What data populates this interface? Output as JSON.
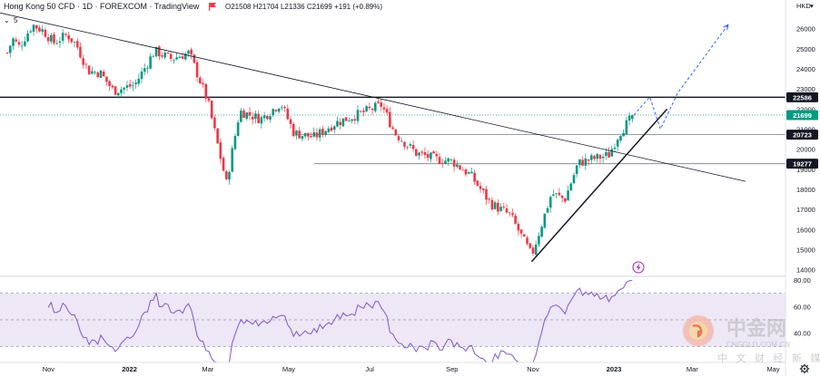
{
  "header": {
    "title": "Hong Kong 50 CFD · 1D · FOREXCOM · TradingView",
    "ohlc": "O21508 H21704 L21336 C21699 +191 (+0.89%)",
    "interval_badge": "5",
    "currency": "HKD"
  },
  "colors": {
    "up": "#089981",
    "down": "#f23645",
    "rsi_line": "#7e57c2",
    "rsi_band": "#ede7f6",
    "trend": "#131722",
    "projection": "#2962ff",
    "tag": "#131722",
    "last_price_tag": "#089981"
  },
  "icons": {
    "menu": "flag-icon",
    "rsi_badge": "lightning-icon",
    "settings": "gear-icon",
    "watermark": "cngold-logo-icon"
  },
  "chart_data": {
    "type": "candlestick",
    "y_axis": {
      "ticks": [
        26000,
        25000,
        24000,
        23000,
        22000,
        21000,
        20000,
        19000,
        18000,
        17000,
        16000,
        15000,
        14000
      ],
      "range": [
        13800,
        26800
      ]
    },
    "x_axis": {
      "labels": [
        "Nov",
        "2022",
        "Mar",
        "May",
        "Jul",
        "Sep",
        "Nov",
        "2023",
        "Mar",
        "May"
      ]
    },
    "price_path": [
      [
        "2021-10-01",
        24800
      ],
      [
        "2021-10-05",
        25500
      ],
      [
        "2021-10-10",
        25100
      ],
      [
        "2021-10-20",
        26200
      ],
      [
        "2021-10-28",
        25900
      ],
      [
        "2021-11-05",
        25300
      ],
      [
        "2021-11-15",
        25700
      ],
      [
        "2021-11-22",
        25200
      ],
      [
        "2021-12-01",
        23900
      ],
      [
        "2021-12-10",
        23800
      ],
      [
        "2021-12-20",
        22900
      ],
      [
        "2022-01-05",
        23200
      ],
      [
        "2022-01-20",
        24900
      ],
      [
        "2022-02-01",
        24500
      ],
      [
        "2022-02-15",
        24800
      ],
      [
        "2022-03-01",
        22400
      ],
      [
        "2022-03-15",
        18300
      ],
      [
        "2022-03-25",
        21900
      ],
      [
        "2022-04-10",
        21500
      ],
      [
        "2022-04-25",
        22300
      ],
      [
        "2022-05-05",
        20800
      ],
      [
        "2022-05-20",
        20600
      ],
      [
        "2022-06-05",
        21300
      ],
      [
        "2022-06-25",
        21800
      ],
      [
        "2022-07-10",
        22200
      ],
      [
        "2022-07-20",
        20800
      ],
      [
        "2022-08-05",
        19800
      ],
      [
        "2022-08-20",
        19500
      ],
      [
        "2022-09-01",
        19400
      ],
      [
        "2022-09-15",
        18700
      ],
      [
        "2022-09-30",
        17300
      ],
      [
        "2022-10-15",
        16700
      ],
      [
        "2022-10-31",
        14700
      ],
      [
        "2022-11-15",
        17800
      ],
      [
        "2022-11-25",
        17500
      ],
      [
        "2022-12-05",
        19300
      ],
      [
        "2022-12-15",
        19500
      ],
      [
        "2022-12-28",
        19700
      ],
      [
        "2023-01-05",
        20800
      ],
      [
        "2023-01-16",
        21699
      ]
    ],
    "horizontal_levels": [
      {
        "value": 22586,
        "label": "22586",
        "style": "solid"
      },
      {
        "value": 20723,
        "label": "20723",
        "style": "thin"
      },
      {
        "value": 19277,
        "label": "19277",
        "style": "thin"
      }
    ],
    "last_price": {
      "value": 21699,
      "label": "21699"
    },
    "trendlines": [
      {
        "from": [
          "2021-09-25",
          26800
        ],
        "to": [
          "2023-04-10",
          18400
        ],
        "style": "thin"
      },
      {
        "from": [
          "2022-10-31",
          14400
        ],
        "to": [
          "2023-02-10",
          22000
        ],
        "style": "bold"
      }
    ],
    "projection": [
      [
        "2023-01-16",
        21700
      ],
      [
        "2023-01-28",
        22600
      ],
      [
        "2023-02-05",
        21000
      ],
      [
        "2023-02-18",
        22800
      ],
      [
        "2023-03-28",
        26200
      ]
    ],
    "rsi": {
      "ticks": [
        80.0,
        60.0,
        40.0
      ],
      "upper": 70,
      "mid": 50,
      "lower": 30,
      "range": [
        18,
        82
      ]
    }
  },
  "watermark": {
    "brand_cn": "中金网",
    "brand_en": "CNGOLD.COM.CN",
    "tagline": "中 文 财 经 新 媒 体"
  }
}
